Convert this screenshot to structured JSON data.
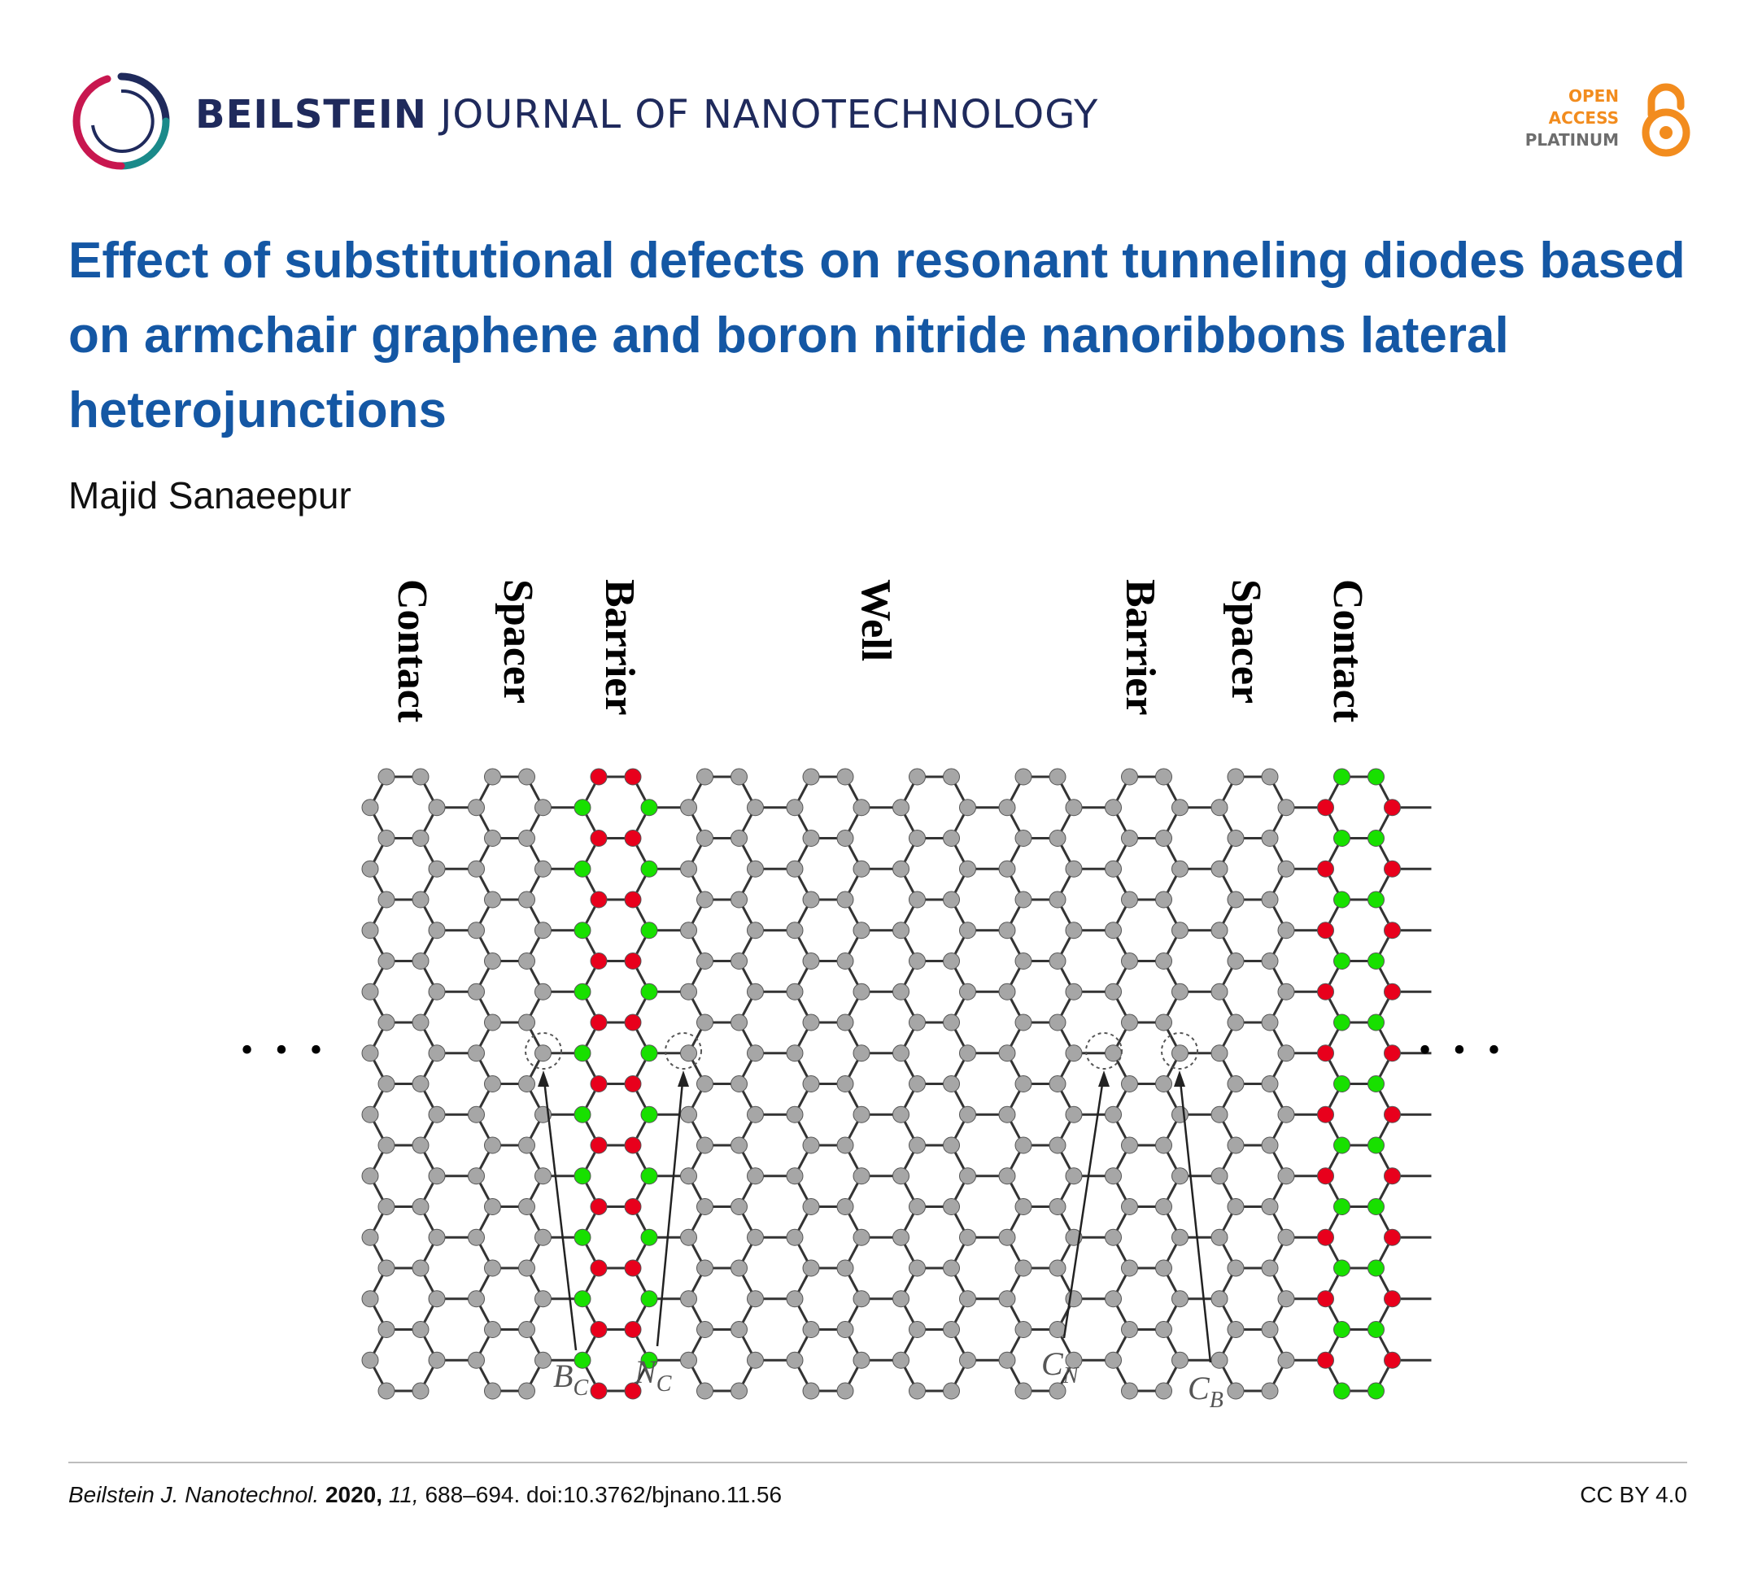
{
  "journal": {
    "name_bold": "BEILSTEIN",
    "name_rest": " JOURNAL OF NANOTECHNOLOGY"
  },
  "badge": {
    "line1": "OPEN",
    "line2": "ACCESS",
    "line3": "PLATINUM",
    "icon": "open-lock-icon"
  },
  "article": {
    "title": "Effect of substitutional defects on resonant tunneling diodes based on armchair graphene and boron nitride nanoribbons lateral heterojunctions",
    "author": "Majid Sanaeepur"
  },
  "figure": {
    "region_labels": [
      "Contact",
      "Spacer",
      "Barrier",
      "Well",
      "Barrier",
      "Spacer",
      "Contact"
    ],
    "defect_labels": [
      {
        "base": "B",
        "sub": "C"
      },
      {
        "base": "N",
        "sub": "C"
      },
      {
        "base": "C",
        "sub": "N"
      },
      {
        "base": "C",
        "sub": "B"
      }
    ],
    "ellipsis": "• • •",
    "colors": {
      "carbon": "#a6a6a6",
      "boron": "#e8001c",
      "nitrogen": "#18e000",
      "bond": "#333333"
    }
  },
  "footer": {
    "journal_abbrev": "Beilstein J. Nanotechnol.",
    "year": "2020,",
    "volume": "11,",
    "pages_doi": "688–694. doi:10.3762/bjnano.11.56",
    "license": "CC BY 4.0"
  }
}
